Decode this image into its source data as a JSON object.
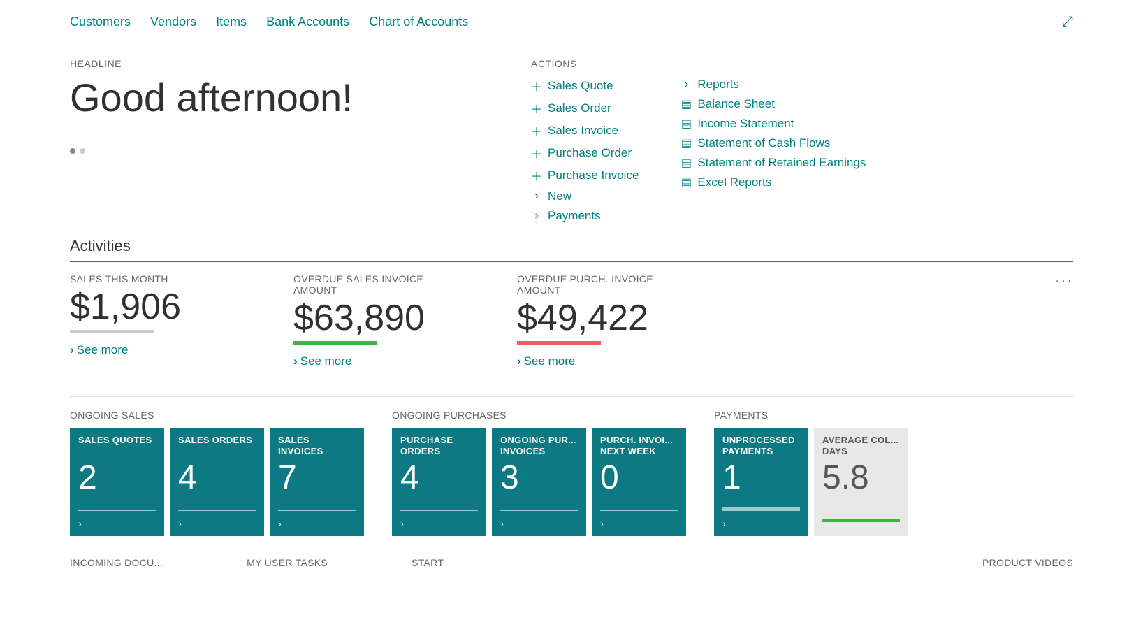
{
  "colors": {
    "teal": "#008080",
    "tile_teal": "#0d7a83",
    "tile_grey": "#e8e8e8",
    "text_dark": "#323130",
    "text_muted": "#666666",
    "underline_grey": "#cccccc",
    "underline_green": "#3fb53f",
    "underline_red": "#e86060",
    "background": "#ffffff"
  },
  "nav": {
    "items": [
      "Customers",
      "Vendors",
      "Items",
      "Bank Accounts",
      "Chart of Accounts"
    ]
  },
  "headline": {
    "label": "HEADLINE",
    "text": "Good afternoon!"
  },
  "actions": {
    "label": "ACTIONS",
    "col1": [
      {
        "icon": "plus",
        "label": "Sales Quote"
      },
      {
        "icon": "plus",
        "label": "Sales Order"
      },
      {
        "icon": "plus",
        "label": "Sales Invoice"
      },
      {
        "icon": "plus",
        "label": "Purchase Order"
      },
      {
        "icon": "plus",
        "label": "Purchase Invoice"
      },
      {
        "icon": "chevron",
        "label": "New"
      },
      {
        "icon": "chevron",
        "label": "Payments"
      }
    ],
    "col2": [
      {
        "icon": "chevron",
        "label": "Reports"
      },
      {
        "icon": "doc",
        "label": "Balance Sheet"
      },
      {
        "icon": "doc",
        "label": "Income Statement"
      },
      {
        "icon": "doc",
        "label": "Statement of Cash Flows"
      },
      {
        "icon": "doc",
        "label": "Statement of Retained Earnings"
      },
      {
        "icon": "doc",
        "label": "Excel Reports"
      }
    ]
  },
  "activities": {
    "title": "Activities",
    "kpis": [
      {
        "label": "SALES THIS MONTH",
        "value": "$1,906",
        "underline_color": "#cccccc",
        "see_more": "See more"
      },
      {
        "label": "OVERDUE SALES INVOICE AMOUNT",
        "value": "$63,890",
        "underline_color": "#3fb53f",
        "see_more": "See more"
      },
      {
        "label": "OVERDUE PURCH. INVOICE AMOUNT",
        "value": "$49,422",
        "underline_color": "#e86060",
        "see_more": "See more"
      }
    ]
  },
  "tile_groups": [
    {
      "label": "ONGOING SALES",
      "tiles": [
        {
          "title": "SALES QUOTES",
          "value": "2",
          "style": "teal"
        },
        {
          "title": "SALES ORDERS",
          "value": "4",
          "style": "teal"
        },
        {
          "title": "SALES INVOICES",
          "value": "7",
          "style": "teal"
        }
      ]
    },
    {
      "label": "ONGOING PURCHASES",
      "tiles": [
        {
          "title": "PURCHASE ORDERS",
          "value": "4",
          "style": "teal"
        },
        {
          "title": "ONGOING PUR... INVOICES",
          "value": "3",
          "style": "teal"
        },
        {
          "title": "PURCH. INVOI... NEXT WEEK",
          "value": "0",
          "style": "teal"
        }
      ]
    },
    {
      "label": "PAYMENTS",
      "tiles": [
        {
          "title": "UNPROCESSED PAYMENTS",
          "value": "1",
          "style": "teal",
          "bar": "green"
        },
        {
          "title": "AVERAGE COL... DAYS",
          "value": "5.8",
          "style": "grey",
          "bar": "green"
        }
      ]
    }
  ],
  "bottom": {
    "items": [
      "INCOMING DOCU...",
      "MY USER TASKS",
      "START"
    ],
    "right": "PRODUCT VIDEOS"
  },
  "pager": {
    "count": 2,
    "active": 0
  }
}
